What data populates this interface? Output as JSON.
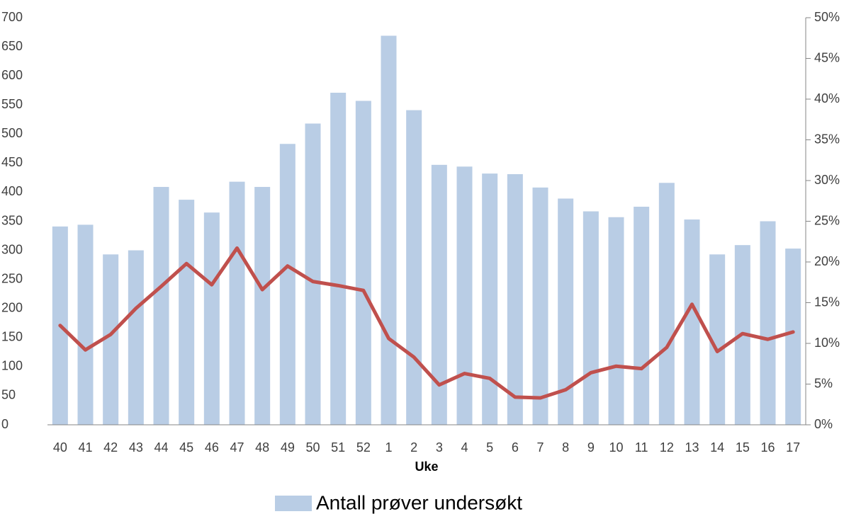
{
  "chart_data": {
    "type": "bar_line",
    "x_label": "Uke",
    "categories": [
      "40",
      "41",
      "42",
      "43",
      "44",
      "45",
      "46",
      "47",
      "48",
      "49",
      "50",
      "51",
      "52",
      "1",
      "2",
      "3",
      "4",
      "5",
      "6",
      "7",
      "8",
      "9",
      "10",
      "11",
      "12",
      "13",
      "14",
      "15",
      "16",
      "17"
    ],
    "series": [
      {
        "name": "Antall prøver undersøkt",
        "type": "bar",
        "color": "#b9cde5",
        "values": [
          341,
          344,
          293,
          300,
          409,
          387,
          365,
          418,
          409,
          483,
          518,
          571,
          557,
          669,
          541,
          447,
          444,
          432,
          431,
          408,
          389,
          367,
          357,
          375,
          416,
          353,
          293,
          309,
          350,
          303
        ]
      },
      {
        "type": "line",
        "color": "#c0504d",
        "axis": "y2",
        "values": [
          12.2,
          9.2,
          11.1,
          14.3,
          17.0,
          19.8,
          17.2,
          21.7,
          16.6,
          19.5,
          17.6,
          17.1,
          16.5,
          10.6,
          8.3,
          4.9,
          6.3,
          5.7,
          3.4,
          3.3,
          4.3,
          6.4,
          7.2,
          6.9,
          9.5,
          14.8,
          9.0,
          11.2,
          10.5,
          11.4
        ]
      }
    ],
    "ylim": [
      0,
      700
    ],
    "yticks": [
      0,
      50,
      100,
      150,
      200,
      250,
      300,
      350,
      400,
      450,
      500,
      550,
      600,
      650,
      700
    ],
    "y2lim": [
      0,
      50
    ],
    "y2ticks": [
      {
        "value": 0,
        "label": "0%"
      },
      {
        "value": 5,
        "label": "5%"
      },
      {
        "value": 10,
        "label": "10%"
      },
      {
        "value": 15,
        "label": "15%"
      },
      {
        "value": 20,
        "label": "20%"
      },
      {
        "value": 25,
        "label": "25%"
      },
      {
        "value": 30,
        "label": "30%"
      },
      {
        "value": 35,
        "label": "35%"
      },
      {
        "value": 40,
        "label": "40%"
      },
      {
        "value": 45,
        "label": "45%"
      },
      {
        "value": 50,
        "label": "50%"
      }
    ],
    "legend": "bottom"
  }
}
